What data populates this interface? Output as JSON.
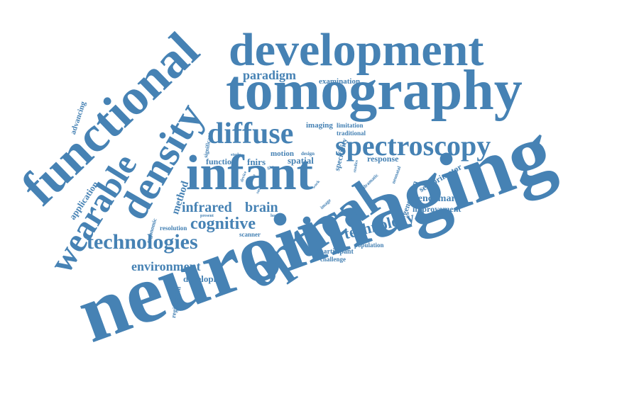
{
  "color": "#4682b4",
  "words": {
    "neuroimaging": "neuroimaging",
    "tomography": "tomography",
    "development": "development",
    "infant": "infant",
    "functional": "functional",
    "density": "density",
    "optical": "optical",
    "wearable": "wearable",
    "spectroscopy": "spectroscopy",
    "diffuse": "diffuse",
    "technologies": "technologies",
    "cognitive": "cognitive",
    "technology": "technology",
    "environment": "environment",
    "brain": "brain",
    "infrared": "infrared",
    "paradigm": "paradigm",
    "method": "method",
    "benchmark": "benchmark",
    "improvement": "improvement",
    "examination": "examination",
    "developing": "developing",
    "application": "application",
    "advancing": "advancing",
    "sensorimotor": "sensorimotor",
    "generation": "generation",
    "response": "response",
    "spatial": "spatial",
    "fnirs": "fnirs",
    "function": "function",
    "motion": "motion",
    "imaging": "imaging",
    "limitation": "limitation",
    "traditional": "traditional",
    "specificity": "specificity",
    "significant": "significant",
    "study": "study",
    "design": "design",
    "neonatal": "neonatal",
    "dramatic": "dramatic",
    "studies": "studies",
    "device": "device",
    "data": "data",
    "like": "like",
    "social": "social",
    "work": "work",
    "image": "image",
    "human": "human",
    "present": "present",
    "ergonomic": "ergonomic",
    "resolution": "resolution",
    "scanner": "scanner",
    "participant": "participant",
    "challenge": "challenge",
    "population": "population",
    "registration": "registration"
  }
}
